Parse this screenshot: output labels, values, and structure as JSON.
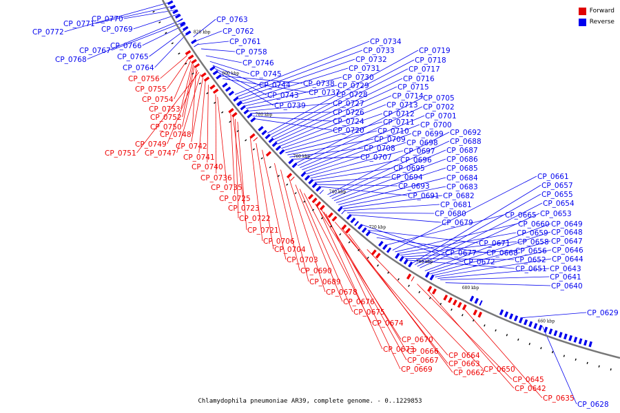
{
  "caption": "Chlamydophila pneumoniae AR39, complete genome. - 0..1229853",
  "legend": [
    {
      "label": "Forward",
      "color": "#e00000"
    },
    {
      "label": "Reverse",
      "color": "#0000ee"
    }
  ],
  "colors": {
    "forward": "#ee0000",
    "reverse": "#0000ee",
    "backbone": "#777777"
  },
  "kbp_marks": [
    "820 kbp",
    "800 kbp",
    "780 kbp",
    "760 kbp",
    "740 kbp",
    "720 kbp",
    "700 kbp",
    "680 kbp",
    "660 kbp"
  ],
  "reverse_labels": [
    "CP_0772",
    "CP_0771",
    "CP_0770",
    "CP_0769",
    "CP_0768",
    "CP_0767",
    "CP_0766",
    "CP_0765",
    "CP_0764",
    "CP_0763",
    "CP_0762",
    "CP_0761",
    "CP_0758",
    "CP_0746",
    "CP_0745",
    "CP_0744",
    "CP_0743",
    "CP_0739",
    "CP_0738",
    "CP_0737",
    "CP_0734",
    "CP_0733",
    "CP_0732",
    "CP_0731",
    "CP_0730",
    "CP_0729",
    "CP_0728",
    "CP_0727",
    "CP_0726",
    "CP_0724",
    "CP_0720",
    "CP_0719",
    "CP_0718",
    "CP_0717",
    "CP_0716",
    "CP_0715",
    "CP_0714",
    "CP_0713",
    "CP_0712",
    "CP_0711",
    "CP_0710",
    "CP_0709",
    "CP_0708",
    "CP_0707",
    "CP_0705",
    "CP_0702",
    "CP_0701",
    "CP_0700",
    "CP_0699",
    "CP_0698",
    "CP_0697",
    "CP_0696",
    "CP_0695",
    "CP_0694",
    "CP_0693",
    "CP_0691",
    "CP_0692",
    "CP_0688",
    "CP_0687",
    "CP_0686",
    "CP_0685",
    "CP_0684",
    "CP_0683",
    "CP_0682",
    "CP_0681",
    "CP_0680",
    "CP_0679",
    "CP_0677",
    "CP_0671",
    "CP_0672",
    "CP_0668",
    "CP_0665",
    "CP_0661",
    "CP_0660",
    "CP_0659",
    "CP_0658",
    "CP_0656",
    "CP_0652",
    "CP_0651",
    "CP_0657",
    "CP_0655",
    "CP_0654",
    "CP_0653",
    "CP_0649",
    "CP_0648",
    "CP_0647",
    "CP_0646",
    "CP_0644",
    "CP_0643",
    "CP_0641",
    "CP_0640",
    "CP_0629",
    "CP_0628"
  ],
  "forward_labels": [
    "CP_0756",
    "CP_0755",
    "CP_0754",
    "CP_0753",
    "CP_0752",
    "CP_0750",
    "CP_0748",
    "CP_0749",
    "CP_0751",
    "CP_0747",
    "CP_0742",
    "CP_0741",
    "CP_0740",
    "CP_0736",
    "CP_0735",
    "CP_0725",
    "CP_0723",
    "CP_0722",
    "CP_0721",
    "CP_0706",
    "CP_0704",
    "CP_0703",
    "CP_0690",
    "CP_0689",
    "CP_0678",
    "CP_0676",
    "CP_0675",
    "CP_0674",
    "CP_0670",
    "CP_0673",
    "CP_0666",
    "CP_0667",
    "CP_0669",
    "CP_0664",
    "CP_0663",
    "CP_0662",
    "CP_0650",
    "CP_0645",
    "CP_0642",
    "CP_0635"
  ]
}
